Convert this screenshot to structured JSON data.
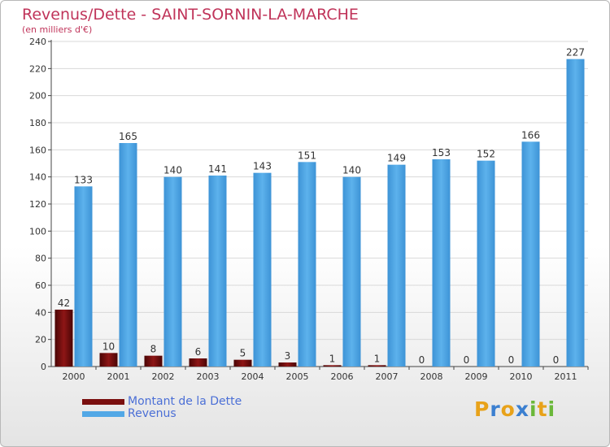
{
  "chart_data": {
    "type": "bar",
    "title": "Revenus/Dette - SAINT-SORNIN-LA-MARCHE",
    "subtitle": "(en milliers d'€)",
    "categories": [
      "2000",
      "2001",
      "2002",
      "2003",
      "2004",
      "2005",
      "2006",
      "2007",
      "2008",
      "2009",
      "2010",
      "2011"
    ],
    "series": [
      {
        "name": "Montant de la Dette",
        "color": "#7a0f0f",
        "values": [
          42,
          10,
          8,
          6,
          5,
          3,
          1,
          1,
          0,
          0,
          0,
          0
        ]
      },
      {
        "name": "Revenus",
        "color": "#52a8e6",
        "values": [
          133,
          165,
          140,
          141,
          143,
          151,
          140,
          149,
          153,
          152,
          166,
          227
        ]
      }
    ],
    "yticks": [
      0,
      20,
      40,
      60,
      80,
      100,
      120,
      140,
      160,
      180,
      200,
      220,
      240
    ],
    "ylim": [
      0,
      240
    ],
    "xlabel": "",
    "ylabel": "",
    "legend_position": "bottom-left"
  },
  "logo": {
    "letters": [
      "P",
      "r",
      "o",
      "x",
      "i",
      "t",
      "i"
    ],
    "colors": [
      "#e8a21a",
      "#3b7fd0",
      "#e8a21a",
      "#3b7fd0",
      "#6bb83a",
      "#e8a21a",
      "#6bb83a"
    ]
  }
}
